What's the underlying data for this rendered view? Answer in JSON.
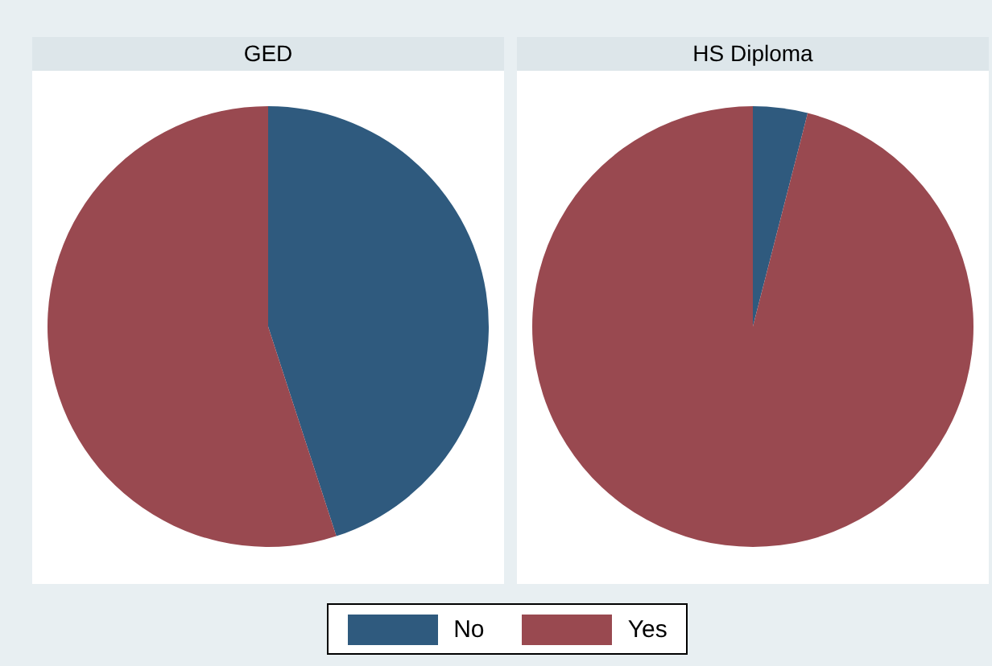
{
  "chart_data": [
    {
      "type": "pie",
      "title": "GED",
      "categories": [
        "No",
        "Yes"
      ],
      "values": [
        45,
        55
      ],
      "colors": [
        "#2f5a7e",
        "#994950"
      ],
      "legend": "bottom"
    },
    {
      "type": "pie",
      "title": "HS Diploma",
      "categories": [
        null,
        null
      ],
      "values": [
        4,
        96
      ],
      "colors": [
        "#2f5a7e",
        "#994950"
      ]
    }
  ]
}
